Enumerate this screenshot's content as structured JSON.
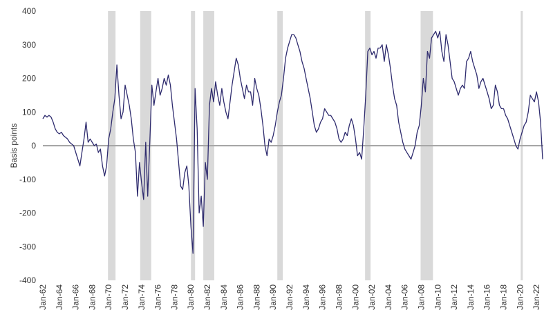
{
  "chart_data": {
    "type": "line",
    "y_label": "Basis points",
    "color": "#2e2b6e",
    "shade_color": "#d9d9d9",
    "zero_line_color": "#a6a6a6",
    "ylim": [
      -400,
      400
    ],
    "yticks": [
      -400,
      -300,
      -200,
      -100,
      0,
      100,
      200,
      300,
      400
    ],
    "xlim": [
      "Jan-62",
      "Nov-22"
    ],
    "xticks": [
      "Jan-62",
      "Jan-64",
      "Jan-66",
      "Jan-68",
      "Jan-70",
      "Jan-72",
      "Jan-74",
      "Jan-76",
      "Jan-78",
      "Jan-80",
      "Jan-82",
      "Jan-84",
      "Jan-86",
      "Jan-88",
      "Jan-90",
      "Jan-92",
      "Jan-94",
      "Jan-96",
      "Jan-98",
      "Jan-00",
      "Jan-02",
      "Jan-04",
      "Jan-06",
      "Jan-08",
      "Jan-10",
      "Jan-12",
      "Jan-14",
      "Jan-16",
      "Jan-18",
      "Jan-20",
      "Jan-22"
    ],
    "shaded_periods": [
      {
        "start": "Dec-69",
        "end": "Nov-70"
      },
      {
        "start": "Nov-73",
        "end": "Mar-75"
      },
      {
        "start": "Jan-80",
        "end": "Jul-80"
      },
      {
        "start": "Jul-81",
        "end": "Nov-82"
      },
      {
        "start": "Jul-90",
        "end": "Mar-91"
      },
      {
        "start": "Mar-01",
        "end": "Nov-01"
      },
      {
        "start": "Dec-07",
        "end": "Jun-09"
      },
      {
        "start": "Feb-20",
        "end": "Apr-20"
      }
    ],
    "x": [
      "Jan-62",
      "Apr-62",
      "Jul-62",
      "Oct-62",
      "Jan-63",
      "Apr-63",
      "Jul-63",
      "Oct-63",
      "Jan-64",
      "Apr-64",
      "Jul-64",
      "Oct-64",
      "Jan-65",
      "Apr-65",
      "Jul-65",
      "Oct-65",
      "Jan-66",
      "Apr-66",
      "Jul-66",
      "Oct-66",
      "Jan-67",
      "Apr-67",
      "Jul-67",
      "Oct-67",
      "Jan-68",
      "Apr-68",
      "Jul-68",
      "Oct-68",
      "Jan-69",
      "Apr-69",
      "Jul-69",
      "Oct-69",
      "Jan-70",
      "Apr-70",
      "Jul-70",
      "Oct-70",
      "Jan-71",
      "Apr-71",
      "Jul-71",
      "Oct-71",
      "Jan-72",
      "Apr-72",
      "Jul-72",
      "Oct-72",
      "Jan-73",
      "Apr-73",
      "Jul-73",
      "Oct-73",
      "Jan-74",
      "Apr-74",
      "Jul-74",
      "Oct-74",
      "Jan-75",
      "Apr-75",
      "Jul-75",
      "Oct-75",
      "Jan-76",
      "Apr-76",
      "Jul-76",
      "Oct-76",
      "Jan-77",
      "Apr-77",
      "Jul-77",
      "Oct-77",
      "Jan-78",
      "Apr-78",
      "Jul-78",
      "Oct-78",
      "Jan-79",
      "Apr-79",
      "Jul-79",
      "Oct-79",
      "Jan-80",
      "Apr-80",
      "Jul-80",
      "Oct-80",
      "Jan-81",
      "Apr-81",
      "Jul-81",
      "Oct-81",
      "Jan-82",
      "Apr-82",
      "Jul-82",
      "Oct-82",
      "Jan-83",
      "Apr-83",
      "Jul-83",
      "Oct-83",
      "Jan-84",
      "Apr-84",
      "Jul-84",
      "Oct-84",
      "Jan-85",
      "Apr-85",
      "Jul-85",
      "Oct-85",
      "Jan-86",
      "Apr-86",
      "Jul-86",
      "Oct-86",
      "Jan-87",
      "Apr-87",
      "Jul-87",
      "Oct-87",
      "Jan-88",
      "Apr-88",
      "Jul-88",
      "Oct-88",
      "Jan-89",
      "Apr-89",
      "Jul-89",
      "Oct-89",
      "Jan-90",
      "Apr-90",
      "Jul-90",
      "Oct-90",
      "Jan-91",
      "Apr-91",
      "Jul-91",
      "Oct-91",
      "Jan-92",
      "Apr-92",
      "Jul-92",
      "Oct-92",
      "Jan-93",
      "Apr-93",
      "Jul-93",
      "Oct-93",
      "Jan-94",
      "Apr-94",
      "Jul-94",
      "Oct-94",
      "Jan-95",
      "Apr-95",
      "Jul-95",
      "Oct-95",
      "Jan-96",
      "Apr-96",
      "Jul-96",
      "Oct-96",
      "Jan-97",
      "Apr-97",
      "Jul-97",
      "Oct-97",
      "Jan-98",
      "Apr-98",
      "Jul-98",
      "Oct-98",
      "Jan-99",
      "Apr-99",
      "Jul-99",
      "Oct-99",
      "Jan-00",
      "Apr-00",
      "Jul-00",
      "Oct-00",
      "Jan-01",
      "Apr-01",
      "Jul-01",
      "Oct-01",
      "Jan-02",
      "Apr-02",
      "Jul-02",
      "Oct-02",
      "Jan-03",
      "Apr-03",
      "Jul-03",
      "Oct-03",
      "Jan-04",
      "Apr-04",
      "Jul-04",
      "Oct-04",
      "Jan-05",
      "Apr-05",
      "Jul-05",
      "Oct-05",
      "Jan-06",
      "Apr-06",
      "Jul-06",
      "Oct-06",
      "Jan-07",
      "Apr-07",
      "Jul-07",
      "Oct-07",
      "Jan-08",
      "Apr-08",
      "Jul-08",
      "Oct-08",
      "Jan-09",
      "Apr-09",
      "Jul-09",
      "Oct-09",
      "Jan-10",
      "Apr-10",
      "Jul-10",
      "Oct-10",
      "Jan-11",
      "Apr-11",
      "Jul-11",
      "Oct-11",
      "Jan-12",
      "Apr-12",
      "Jul-12",
      "Oct-12",
      "Jan-13",
      "Apr-13",
      "Jul-13",
      "Oct-13",
      "Jan-14",
      "Apr-14",
      "Jul-14",
      "Oct-14",
      "Jan-15",
      "Apr-15",
      "Jul-15",
      "Oct-15",
      "Jan-16",
      "Apr-16",
      "Jul-16",
      "Oct-16",
      "Jan-17",
      "Apr-17",
      "Jul-17",
      "Oct-17",
      "Jan-18",
      "Apr-18",
      "Jul-18",
      "Oct-18",
      "Jan-19",
      "Apr-19",
      "Jul-19",
      "Oct-19",
      "Jan-20",
      "Apr-20",
      "Jul-20",
      "Oct-20",
      "Jan-21",
      "Apr-21",
      "Jul-21",
      "Oct-21",
      "Jan-22",
      "Apr-22",
      "Jul-22",
      "Oct-22"
    ],
    "values": [
      80,
      90,
      85,
      90,
      85,
      70,
      50,
      40,
      35,
      40,
      30,
      25,
      20,
      10,
      5,
      0,
      -20,
      -40,
      -60,
      -20,
      20,
      70,
      10,
      20,
      10,
      0,
      5,
      -20,
      -10,
      -60,
      -90,
      -60,
      20,
      50,
      100,
      140,
      240,
      150,
      80,
      100,
      180,
      150,
      120,
      80,
      20,
      -20,
      -150,
      -50,
      -110,
      -160,
      10,
      -150,
      10,
      180,
      120,
      160,
      200,
      150,
      170,
      200,
      180,
      210,
      180,
      120,
      70,
      20,
      -50,
      -120,
      -130,
      -80,
      -60,
      -120,
      -240,
      -320,
      170,
      50,
      -200,
      -150,
      -240,
      -50,
      -100,
      120,
      170,
      130,
      190,
      150,
      120,
      170,
      130,
      100,
      80,
      130,
      180,
      220,
      260,
      240,
      200,
      170,
      140,
      180,
      160,
      160,
      120,
      200,
      170,
      150,
      110,
      60,
      0,
      -30,
      20,
      10,
      30,
      60,
      100,
      130,
      150,
      200,
      260,
      290,
      310,
      330,
      330,
      320,
      300,
      280,
      250,
      230,
      200,
      170,
      140,
      100,
      60,
      40,
      50,
      70,
      80,
      110,
      100,
      90,
      90,
      80,
      70,
      50,
      20,
      10,
      20,
      40,
      30,
      60,
      80,
      60,
      20,
      -30,
      -20,
      -40,
      50,
      150,
      280,
      290,
      270,
      280,
      260,
      290,
      290,
      300,
      250,
      300,
      270,
      230,
      180,
      140,
      120,
      70,
      40,
      10,
      -10,
      -20,
      -30,
      -40,
      -20,
      0,
      40,
      60,
      120,
      200,
      160,
      280,
      260,
      320,
      330,
      340,
      320,
      340,
      280,
      250,
      330,
      300,
      250,
      200,
      190,
      170,
      150,
      170,
      180,
      170,
      250,
      260,
      280,
      250,
      230,
      210,
      170,
      190,
      200,
      180,
      160,
      140,
      110,
      120,
      180,
      160,
      120,
      110,
      110,
      90,
      80,
      60,
      40,
      20,
      0,
      -10,
      20,
      40,
      60,
      70,
      100,
      150,
      140,
      130,
      160,
      130,
      70,
      -40
    ]
  }
}
